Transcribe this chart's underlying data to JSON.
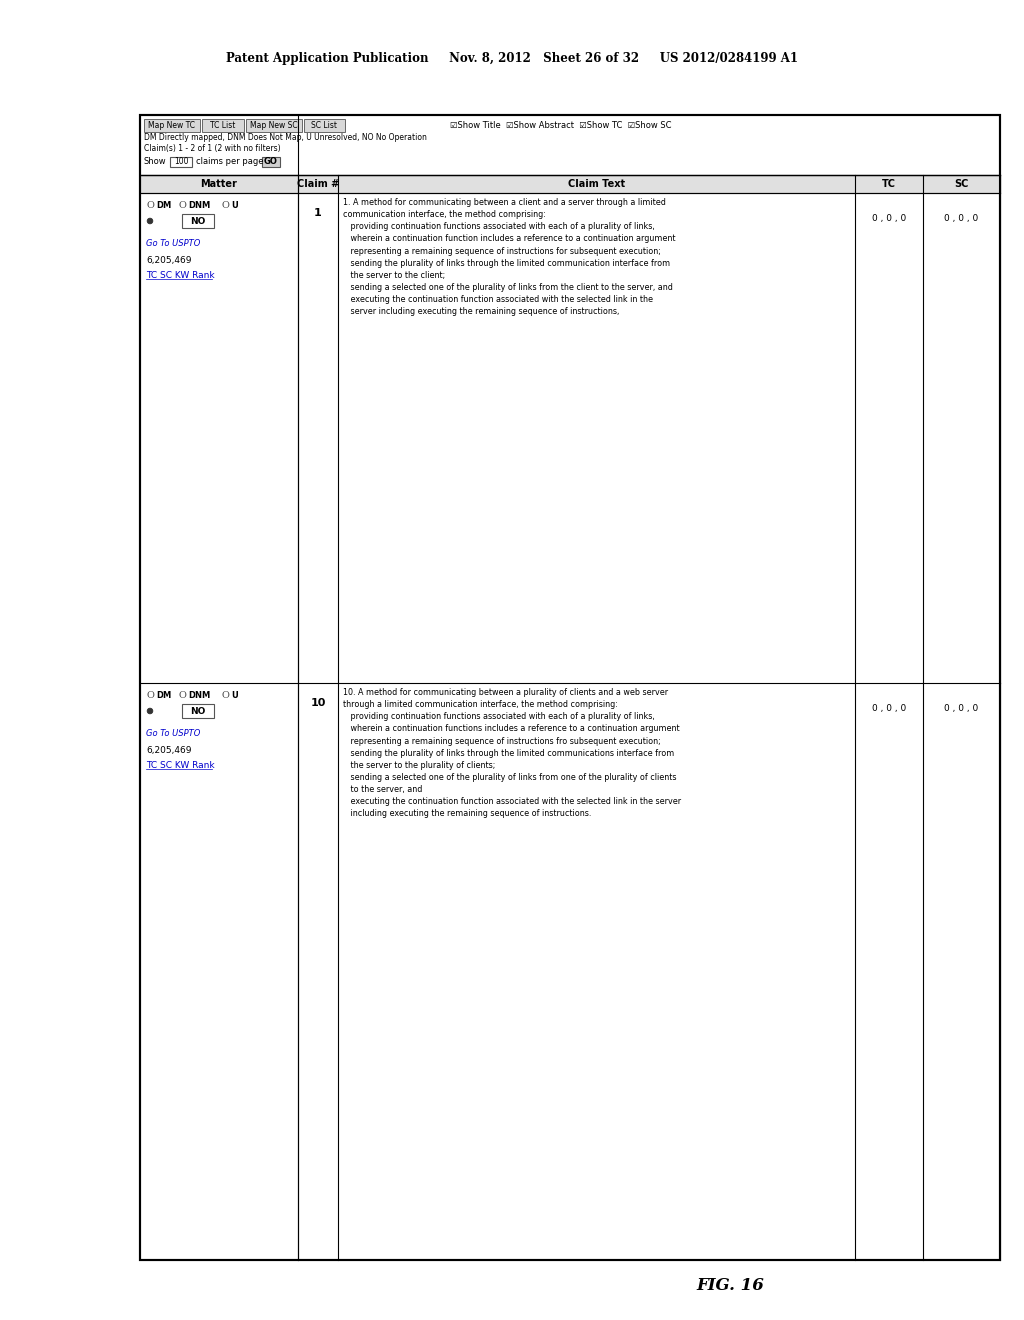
{
  "page_header": "Patent Application Publication     Nov. 8, 2012   Sheet 26 of 32     US 2012/0284199 A1",
  "figure_label": "FIG. 16",
  "filter_line": "DM Directly mapped, DNM Does Not Map, U Unresolved, NO No Operation",
  "claims_line": "Claim(s) 1 - 2 of 1 (2 with no filters)",
  "show_checkboxes": "☑Show Title  ☑Show Abstract  ☑Show TC  ☑Show SC",
  "col_headers": [
    "Matter",
    "Claim #",
    "Claim Text",
    "TC",
    "SC"
  ],
  "row1_matter_num": "6,205,469",
  "row1_matter_links": "TC SC KW Rank",
  "row1_claim": "1",
  "row1_tc": "0 , 0 , 0",
  "row1_sc": "0 , 0 , 0",
  "row1_goto": "Go To USPTO",
  "row1_text": "1. A method for communicating between a client and a server through a limited\ncommunication interface, the method comprising:\n   providing continuation functions associated with each of a plurality of links,\n   wherein a continuation function includes a reference to a continuation argument\n   representing a remaining sequence of instructions for subsequent execution;\n   sending the plurality of links through the limited communication interface from\n   the server to the client;\n   sending a selected one of the plurality of links from the client to the server, and\n   executing the continuation function associated with the selected link in the\n   server including executing the remaining sequence of instructions,",
  "row2_matter_num": "6,205,469",
  "row2_matter_links": "TC SC KW Rank",
  "row2_claim": "10",
  "row2_tc": "0 , 0 , 0",
  "row2_sc": "0 , 0 , 0",
  "row2_goto": "Go To USPTO",
  "row2_text": "10. A method for communicating between a plurality of clients and a web server\nthrough a limited communication interface, the method comprising:\n   providing continuation functions associated with each of a plurality of links,\n   wherein a continuation functions includes a reference to a continuation argument\n   representing a remaining sequence of instructions fro subsequent execution;\n   sending the plurality of links through the limited communications interface from\n   the server to the plurality of clients;\n   sending a selected one of the plurality of links from one of the plurality of clients\n   to the server, and\n   executing the continuation function associated with the selected link in the server\n   including executing the remaining sequence of instructions.",
  "bg_color": "#ffffff",
  "border_color": "#000000",
  "text_color": "#000000"
}
